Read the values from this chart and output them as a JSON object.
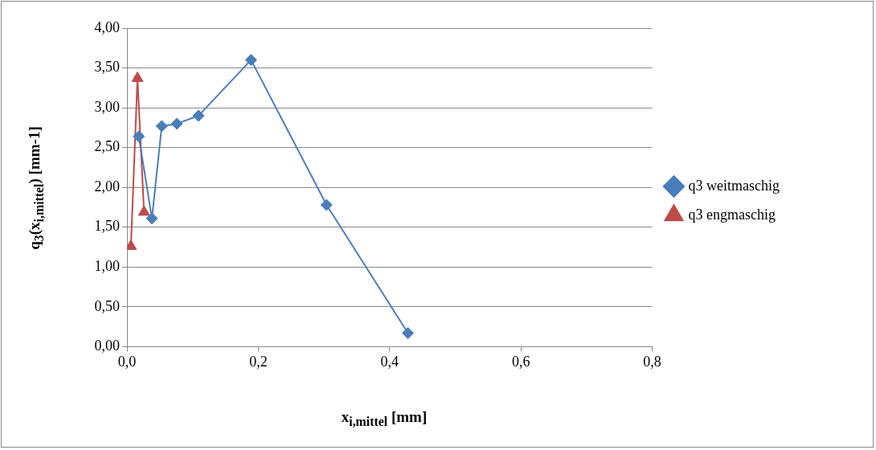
{
  "chart_data": {
    "type": "line",
    "xlabel": "x$_{i,mittel}$ [mm]",
    "ylabel": "q$_{3}$(x$_{i,mittel}$) [mm-1]",
    "xlim": [
      0,
      0.8
    ],
    "xticks": [
      {
        "value": 0,
        "label": "0,0"
      },
      {
        "value": 0.2,
        "label": "0,2"
      },
      {
        "value": 0.4,
        "label": "0,4"
      },
      {
        "value": 0.6,
        "label": "0,6"
      },
      {
        "value": 0.8,
        "label": "0,8"
      }
    ],
    "ylim": [
      0,
      4
    ],
    "yticks": [
      {
        "value": 0,
        "label": "0,00"
      },
      {
        "value": 0.5,
        "label": "0,50"
      },
      {
        "value": 1,
        "label": "1,00"
      },
      {
        "value": 1.5,
        "label": "1,50"
      },
      {
        "value": 2,
        "label": "2,00"
      },
      {
        "value": 2.5,
        "label": "2,50"
      },
      {
        "value": 3,
        "label": "3,00"
      },
      {
        "value": 3.5,
        "label": "3,50"
      },
      {
        "value": 4,
        "label": "4,00"
      }
    ],
    "grid": "y",
    "legend": "right",
    "series": [
      {
        "name": "q3 weitmaschig",
        "color": "#4a7ebb",
        "marker": "diamond",
        "x": [
          0.018,
          0.038,
          0.053,
          0.076,
          0.109,
          0.189,
          0.304,
          0.428
        ],
        "values": [
          2.64,
          1.61,
          2.77,
          2.8,
          2.9,
          3.6,
          1.78,
          0.17
        ]
      },
      {
        "name": "q3 engmaschig",
        "color": "#be4b48",
        "marker": "triangle",
        "x": [
          0.006,
          0.016,
          0.026
        ],
        "values": [
          1.26,
          3.37,
          1.69
        ]
      }
    ]
  }
}
